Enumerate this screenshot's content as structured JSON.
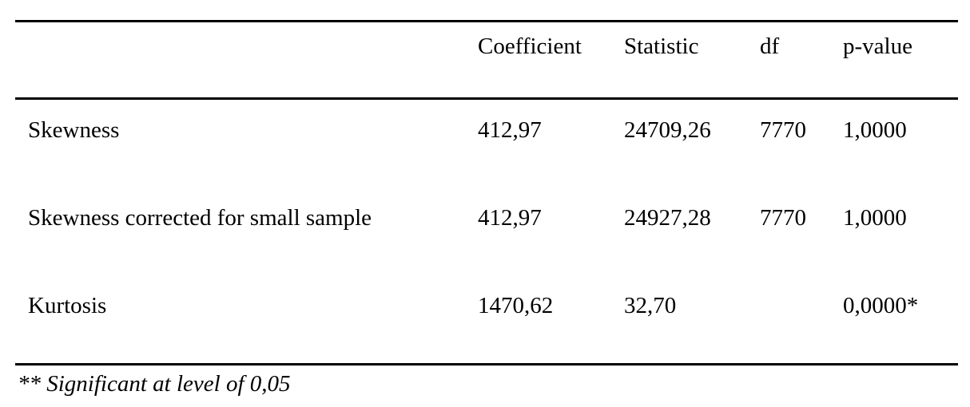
{
  "table": {
    "headers": [
      "",
      "Coefficient",
      "Statistic",
      "df",
      "p-value"
    ],
    "rows": [
      [
        "Skewness",
        "412,97",
        "24709,26",
        "7770",
        "1,0000"
      ],
      [
        "Skewness corrected for small sample",
        "412,97",
        "24927,28",
        "7770",
        "1,0000"
      ],
      [
        "Kurtosis",
        "1470,62",
        "32,70",
        "",
        "0,0000*"
      ]
    ]
  },
  "footnote": "** Significant at level of 0,05"
}
